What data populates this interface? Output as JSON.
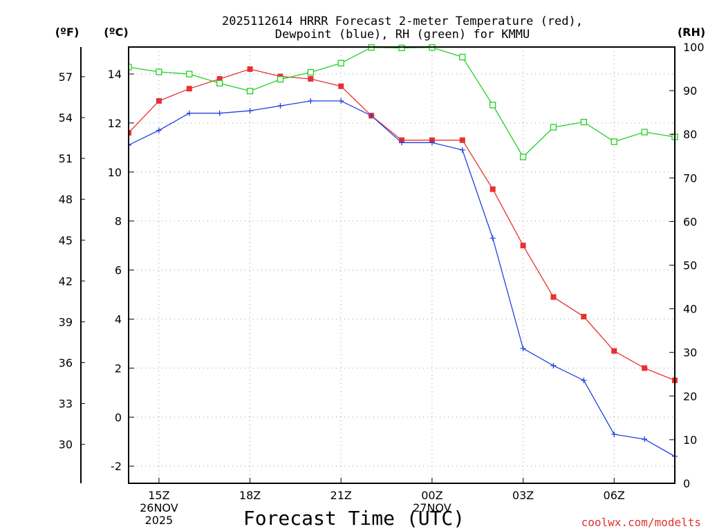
{
  "chart_data": {
    "type": "line",
    "title_lines": [
      "2025112614 HRRR Forecast 2-meter Temperature (red),",
      "Dewpoint (blue), RH (green) for KMMU"
    ],
    "xlabel": "Forecast Time (UTC)",
    "credit": "coolwx.com/modelts",
    "units": {
      "fahrenheit": "(ºF)",
      "celsius": "(ºC)",
      "rh": "(RH)"
    },
    "x_range": [
      14,
      32
    ],
    "x_ticks": [
      {
        "x": 15,
        "lines": [
          "15Z",
          "26NOV",
          "2025"
        ]
      },
      {
        "x": 18,
        "lines": [
          "18Z"
        ]
      },
      {
        "x": 21,
        "lines": [
          "21Z"
        ]
      },
      {
        "x": 24,
        "lines": [
          "00Z",
          "27NOV"
        ]
      },
      {
        "x": 27,
        "lines": [
          "03Z"
        ]
      },
      {
        "x": 30,
        "lines": [
          "06Z"
        ]
      }
    ],
    "celsius_range": [
      -2.7,
      15.1
    ],
    "celsius_ticks": [
      -2,
      0,
      2,
      4,
      6,
      8,
      10,
      12,
      14
    ],
    "fahrenheit_ticks": [
      30,
      33,
      36,
      39,
      42,
      45,
      48,
      51,
      54,
      57
    ],
    "rh_range": [
      0,
      100
    ],
    "rh_ticks": [
      0,
      10,
      20,
      30,
      40,
      50,
      60,
      70,
      80,
      90,
      100
    ],
    "x": [
      14,
      15,
      16,
      17,
      18,
      19,
      20,
      21,
      22,
      23,
      24,
      25,
      26,
      27,
      28,
      29,
      30,
      31,
      32
    ],
    "series": [
      {
        "name": "Temperature",
        "axis": "celsius",
        "color": "#e83030",
        "marker": "square",
        "values": [
          11.6,
          12.9,
          13.4,
          13.8,
          14.2,
          13.9,
          13.8,
          13.5,
          12.3,
          11.3,
          11.3,
          11.3,
          9.3,
          7.0,
          4.9,
          4.1,
          2.7,
          2.0,
          1.5
        ]
      },
      {
        "name": "Dewpoint",
        "axis": "celsius",
        "color": "#2040e0",
        "marker": "plus",
        "values": [
          11.1,
          11.7,
          12.4,
          12.4,
          12.5,
          12.7,
          12.9,
          12.9,
          12.3,
          11.2,
          11.2,
          10.9,
          7.3,
          2.8,
          2.1,
          1.5,
          -0.7,
          -0.9,
          -1.6
        ]
      },
      {
        "name": "RH",
        "axis": "rh",
        "color": "#20d020",
        "marker": "open-square",
        "values": [
          95.4,
          94.3,
          93.8,
          91.7,
          89.9,
          92.6,
          94.2,
          96.3,
          99.9,
          99.8,
          99.9,
          97.7,
          86.7,
          74.8,
          81.6,
          82.8,
          78.3,
          80.5,
          79.4
        ]
      }
    ]
  }
}
